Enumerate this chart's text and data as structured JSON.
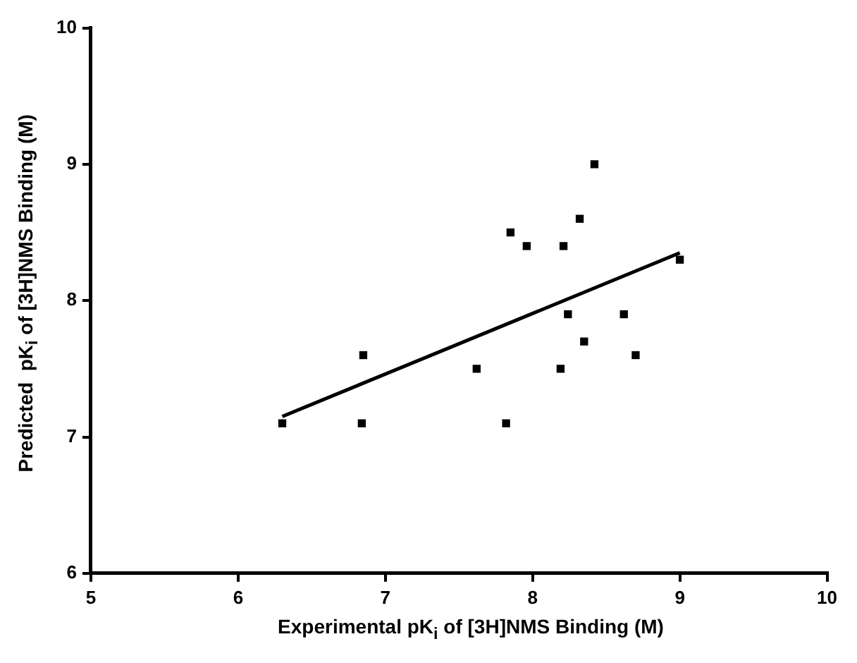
{
  "chart_data": {
    "type": "scatter",
    "xlabel": "Experimental pK$_{i}$ of [3H]NMS Binding (M)",
    "ylabel": "Predicted  pK$_{i}$ of [3H]NMS Binding (M)",
    "xlim": [
      5,
      10
    ],
    "xticks": [
      5,
      6,
      7,
      8,
      9,
      10
    ],
    "ylim": [
      6,
      10
    ],
    "yticks": [
      6,
      7,
      8,
      9,
      10
    ],
    "grid": false,
    "legend": false,
    "marker": "square",
    "series": [
      {
        "color": "#000000",
        "x": [
          6.3,
          6.85,
          6.84,
          7.62,
          7.82,
          7.85,
          7.96,
          8.21,
          8.19,
          8.24,
          8.32,
          8.35,
          8.42,
          8.62,
          8.7,
          9.0
        ],
        "values": [
          7.1,
          7.6,
          7.1,
          7.5,
          7.1,
          8.5,
          8.4,
          8.4,
          7.5,
          7.9,
          8.6,
          7.7,
          9.0,
          7.9,
          7.6,
          8.3
        ]
      },
      {
        "type": "line",
        "color": "#000000",
        "marker": "none",
        "line_style": "solid",
        "x": [
          6.3,
          9.0
        ],
        "values": [
          7.15,
          8.35
        ]
      }
    ]
  }
}
